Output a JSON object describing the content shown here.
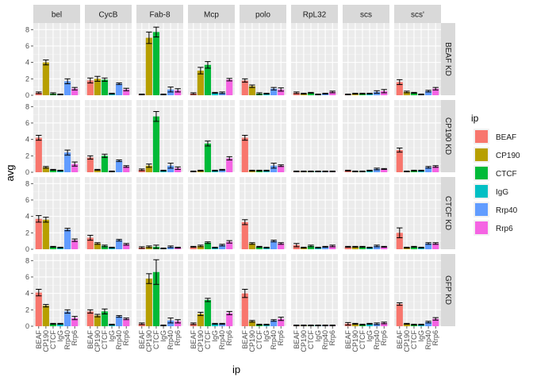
{
  "chart_data": {
    "type": "bar",
    "title": "",
    "xlabel": "ip",
    "ylabel": "avg",
    "ylim": [
      0,
      8.8
    ],
    "yticks": [
      0,
      2,
      4,
      6,
      8
    ],
    "grid": true,
    "legend_position": "right",
    "legend_title": "ip",
    "facet_cols": [
      "bel",
      "CycB",
      "Fab-8",
      "Mcp",
      "polo",
      "RpL32",
      "scs",
      "scs'"
    ],
    "facet_rows": [
      "BEAF KD",
      "CP190 KD",
      "CTCF KD",
      "GFP KD"
    ],
    "categories": [
      "BEAF",
      "CP190",
      "CTCF",
      "IgG",
      "Rrp40",
      "Rrp6"
    ],
    "colors": [
      "#F8766D",
      "#B79F00",
      "#00BA38",
      "#00BFC4",
      "#619CFF",
      "#F564E3"
    ],
    "values": [
      [
        [
          [
            0.3,
            4.0,
            0.2,
            0.1,
            1.7,
            0.8
          ],
          [
            1.8,
            2.0,
            1.9,
            0.2,
            1.4,
            0.7
          ],
          [
            0.1,
            7.0,
            7.7,
            0.1,
            0.7,
            0.6
          ],
          [
            0.2,
            3.0,
            3.7,
            0.3,
            0.3,
            1.9
          ],
          [
            1.8,
            1.1,
            0.2,
            0.2,
            0.8,
            0.7
          ],
          [
            0.3,
            0.2,
            0.3,
            0.1,
            0.2,
            0.4
          ],
          [
            0.1,
            0.2,
            0.2,
            0.2,
            0.4,
            0.5
          ],
          [
            1.6,
            0.4,
            0.3,
            0.1,
            0.5,
            0.8
          ]
        ],
        [
          [
            4.2,
            0.6,
            0.3,
            0.2,
            2.4,
            1.0
          ],
          [
            1.8,
            0.3,
            2.0,
            0.1,
            1.4,
            0.7
          ],
          [
            0.3,
            0.8,
            6.8,
            0.2,
            0.8,
            0.5
          ],
          [
            0.1,
            0.2,
            3.5,
            0.2,
            0.3,
            1.7
          ],
          [
            4.2,
            0.2,
            0.2,
            0.2,
            0.8,
            0.8
          ],
          [
            0.1,
            0.1,
            0.1,
            0.1,
            0.1,
            0.1
          ],
          [
            0.2,
            0.1,
            0.1,
            0.2,
            0.4,
            0.4
          ],
          [
            2.7,
            0.1,
            0.2,
            0.2,
            0.6,
            0.7
          ]
        ],
        [
          [
            3.7,
            3.6,
            0.3,
            0.2,
            2.4,
            1.1
          ],
          [
            1.4,
            0.7,
            0.4,
            0.2,
            1.1,
            0.6
          ],
          [
            0.2,
            0.3,
            0.3,
            0.1,
            0.3,
            0.2
          ],
          [
            0.3,
            0.4,
            0.8,
            0.2,
            0.5,
            0.9
          ],
          [
            3.3,
            0.7,
            0.3,
            0.2,
            1.0,
            0.7
          ],
          [
            0.5,
            0.2,
            0.4,
            0.2,
            0.3,
            0.4
          ],
          [
            0.3,
            0.3,
            0.3,
            0.2,
            0.4,
            0.3
          ],
          [
            2.0,
            0.2,
            0.3,
            0.2,
            0.7,
            0.7
          ]
        ],
        [
          [
            4.1,
            2.5,
            0.3,
            0.3,
            1.8,
            1.0
          ],
          [
            1.8,
            1.3,
            1.8,
            0.2,
            1.2,
            0.9
          ],
          [
            0.3,
            5.8,
            6.6,
            0.1,
            0.7,
            0.6
          ],
          [
            0.3,
            1.5,
            3.2,
            0.3,
            0.3,
            1.6
          ],
          [
            4.0,
            0.6,
            0.2,
            0.2,
            0.7,
            0.9
          ],
          [
            0.1,
            0.1,
            0.1,
            0.1,
            0.1,
            0.1
          ],
          [
            0.3,
            0.3,
            0.2,
            0.3,
            0.3,
            0.4
          ],
          [
            2.7,
            0.3,
            0.2,
            0.2,
            0.5,
            0.9
          ]
        ]
      ]
    ],
    "error": [
      [
        [
          [
            0.1,
            0.3,
            0.1,
            0.05,
            0.3,
            0.15
          ],
          [
            0.3,
            0.3,
            0.2,
            0.05,
            0.1,
            0.15
          ],
          [
            0.05,
            0.7,
            0.6,
            0.05,
            0.3,
            0.2
          ],
          [
            0.1,
            0.4,
            0.4,
            0.05,
            0.1,
            0.15
          ],
          [
            0.2,
            0.15,
            0.1,
            0.05,
            0.15,
            0.2
          ],
          [
            0.1,
            0.05,
            0.05,
            0.05,
            0.05,
            0.1
          ],
          [
            0.05,
            0.05,
            0.05,
            0.05,
            0.15,
            0.2
          ],
          [
            0.3,
            0.1,
            0.05,
            0.05,
            0.1,
            0.15
          ]
        ],
        [
          [
            0.3,
            0.1,
            0.05,
            0.05,
            0.3,
            0.25
          ],
          [
            0.2,
            0.05,
            0.2,
            0.05,
            0.1,
            0.1
          ],
          [
            0.1,
            0.2,
            0.6,
            0.05,
            0.3,
            0.15
          ],
          [
            0.05,
            0.05,
            0.3,
            0.05,
            0.05,
            0.2
          ],
          [
            0.3,
            0.05,
            0.05,
            0.05,
            0.3,
            0.1
          ],
          [
            0.05,
            0.05,
            0.05,
            0.05,
            0.05,
            0.05
          ],
          [
            0.05,
            0.05,
            0.05,
            0.05,
            0.1,
            0.05
          ],
          [
            0.25,
            0.05,
            0.05,
            0.05,
            0.1,
            0.1
          ]
        ],
        [
          [
            0.4,
            0.3,
            0.05,
            0.05,
            0.15,
            0.15
          ],
          [
            0.3,
            0.1,
            0.1,
            0.05,
            0.1,
            0.1
          ],
          [
            0.1,
            0.1,
            0.2,
            0.05,
            0.1,
            0.05
          ],
          [
            0.05,
            0.1,
            0.1,
            0.05,
            0.1,
            0.15
          ],
          [
            0.3,
            0.1,
            0.05,
            0.05,
            0.1,
            0.1
          ],
          [
            0.2,
            0.05,
            0.1,
            0.05,
            0.05,
            0.1
          ],
          [
            0.05,
            0.05,
            0.05,
            0.05,
            0.1,
            0.05
          ],
          [
            0.6,
            0.05,
            0.05,
            0.05,
            0.1,
            0.1
          ]
        ],
        [
          [
            0.4,
            0.15,
            0.05,
            0.05,
            0.2,
            0.2
          ],
          [
            0.2,
            0.15,
            0.3,
            0.05,
            0.1,
            0.1
          ],
          [
            0.1,
            0.6,
            1.5,
            0.05,
            0.3,
            0.2
          ],
          [
            0.1,
            0.2,
            0.2,
            0.05,
            0.05,
            0.2
          ],
          [
            0.5,
            0.1,
            0.05,
            0.05,
            0.1,
            0.2
          ],
          [
            0.05,
            0.05,
            0.05,
            0.05,
            0.05,
            0.05
          ],
          [
            0.15,
            0.05,
            0.05,
            0.05,
            0.1,
            0.1
          ],
          [
            0.15,
            0.05,
            0.05,
            0.05,
            0.1,
            0.15
          ]
        ]
      ]
    ]
  }
}
